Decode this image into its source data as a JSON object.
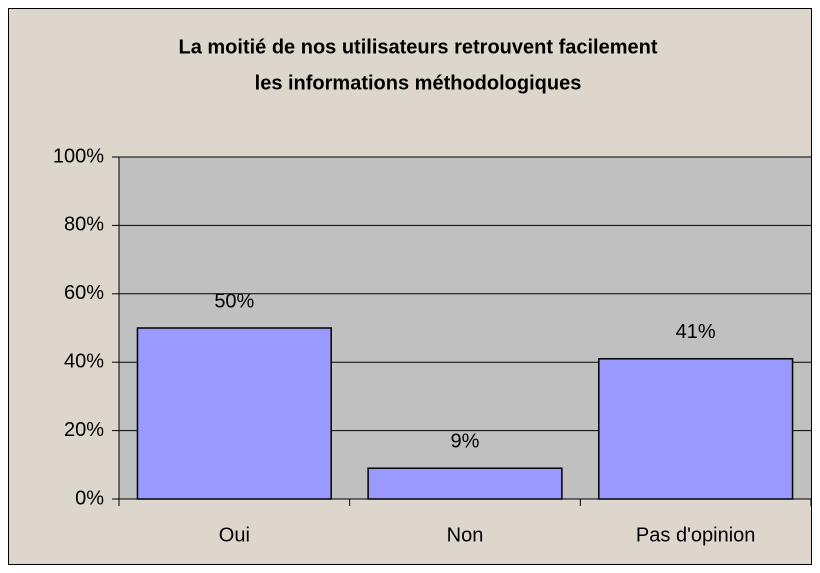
{
  "chart_data": {
    "type": "bar",
    "title": [
      "La moitié de nos utilisateurs retrouvent facilement",
      "les informations méthodologiques"
    ],
    "categories": [
      "Oui",
      "Non",
      "Pas d'opinion"
    ],
    "values": [
      50,
      9,
      41
    ],
    "value_labels": [
      "50%",
      "9%",
      "41%"
    ],
    "color": "#9999ff",
    "ylim": [
      0,
      100
    ],
    "yticks": [
      {
        "value": 0,
        "label": "0%"
      },
      {
        "value": 20,
        "label": "20%"
      },
      {
        "value": 40,
        "label": "40%"
      },
      {
        "value": 60,
        "label": "60%"
      },
      {
        "value": 80,
        "label": "80%"
      },
      {
        "value": 100,
        "label": "100%"
      }
    ],
    "grid": true
  }
}
